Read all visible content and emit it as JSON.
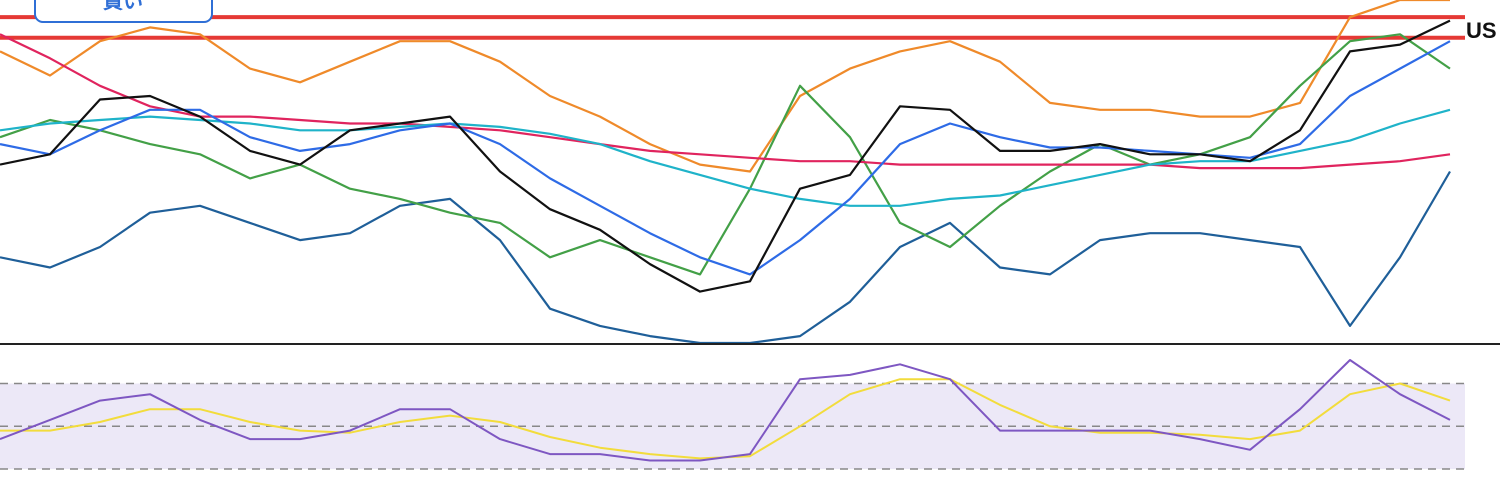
{
  "ui": {
    "buy_button": "買い",
    "price_label": "US"
  },
  "chart_data": [
    {
      "type": "line",
      "x": [
        0,
        50,
        100,
        150,
        200,
        250,
        300,
        350,
        400,
        450,
        500,
        550,
        600,
        650,
        700,
        750,
        800,
        850,
        900,
        950,
        1000,
        1050,
        1100,
        1150,
        1200,
        1250,
        1300,
        1350,
        1400,
        1450
      ],
      "xlim": [
        0,
        1465
      ],
      "ylim": [
        0,
        100
      ],
      "hlines": [
        89,
        95
      ],
      "hline_color": "#e53935",
      "series": [
        {
          "color": "#ef8a2a",
          "values": [
            85,
            78,
            88,
            92,
            90,
            80,
            76,
            82,
            88,
            88,
            82,
            72,
            66,
            58,
            52,
            50,
            72,
            80,
            85,
            88,
            82,
            70,
            68,
            68,
            66,
            66,
            70,
            95,
            100,
            100
          ]
        },
        {
          "color": "#1f5f99",
          "values": [
            25,
            22,
            28,
            38,
            40,
            35,
            30,
            32,
            40,
            42,
            30,
            10,
            5,
            2,
            0,
            0,
            2,
            12,
            28,
            35,
            22,
            20,
            30,
            32,
            32,
            30,
            28,
            5,
            25,
            50
          ]
        },
        {
          "color": "#43a047",
          "values": [
            60,
            65,
            62,
            58,
            55,
            48,
            52,
            45,
            42,
            38,
            35,
            25,
            30,
            25,
            20,
            45,
            75,
            60,
            35,
            28,
            40,
            50,
            58,
            52,
            55,
            60,
            75,
            88,
            90,
            80
          ]
        },
        {
          "color": "#e0245e",
          "values": [
            90,
            83,
            75,
            69,
            66,
            66,
            65,
            64,
            64,
            63,
            62,
            60,
            58,
            56,
            55,
            54,
            53,
            53,
            52,
            52,
            52,
            52,
            52,
            52,
            51,
            51,
            51,
            52,
            53,
            55
          ]
        },
        {
          "color": "#1fb3c9",
          "values": [
            62,
            64,
            65,
            66,
            65,
            64,
            62,
            62,
            63,
            64,
            63,
            61,
            58,
            53,
            49,
            45,
            42,
            40,
            40,
            42,
            43,
            46,
            49,
            52,
            53,
            53,
            56,
            59,
            64,
            68
          ]
        },
        {
          "color": "#2e6be6",
          "values": [
            58,
            55,
            62,
            68,
            68,
            60,
            56,
            58,
            62,
            64,
            58,
            48,
            40,
            32,
            25,
            20,
            30,
            42,
            58,
            64,
            60,
            57,
            57,
            56,
            55,
            54,
            58,
            72,
            80,
            88
          ]
        },
        {
          "color": "#111111",
          "values": [
            52,
            55,
            71,
            72,
            66,
            56,
            52,
            62,
            64,
            66,
            50,
            39,
            33,
            23,
            15,
            18,
            45,
            49,
            69,
            68,
            56,
            56,
            58,
            55,
            55,
            53,
            62,
            85,
            87,
            94
          ]
        }
      ]
    },
    {
      "type": "line",
      "x": [
        0,
        50,
        100,
        150,
        200,
        250,
        300,
        350,
        400,
        450,
        500,
        550,
        600,
        650,
        700,
        750,
        800,
        850,
        900,
        950,
        1000,
        1050,
        1100,
        1150,
        1200,
        1250,
        1300,
        1350,
        1400,
        1450
      ],
      "xlim": [
        0,
        1465
      ],
      "ylim": [
        16,
        88
      ],
      "hlines": [
        30,
        50,
        70
      ],
      "hline_color": "#888888",
      "band": [
        30,
        70
      ],
      "band_color": "#ece8f7",
      "series": [
        {
          "color": "#f2dc3c",
          "values": [
            48,
            48,
            52,
            58,
            58,
            52,
            48,
            47,
            52,
            55,
            52,
            45,
            40,
            37,
            35,
            36,
            50,
            65,
            72,
            72,
            60,
            50,
            47,
            47,
            46,
            44,
            48,
            65,
            70,
            62
          ]
        },
        {
          "color": "#7e57c2",
          "values": [
            44,
            53,
            62,
            65,
            53,
            44,
            44,
            48,
            58,
            58,
            44,
            37,
            37,
            34,
            34,
            37,
            72,
            74,
            79,
            72,
            48,
            48,
            48,
            48,
            44,
            39,
            58,
            81,
            65,
            53
          ]
        }
      ]
    }
  ]
}
